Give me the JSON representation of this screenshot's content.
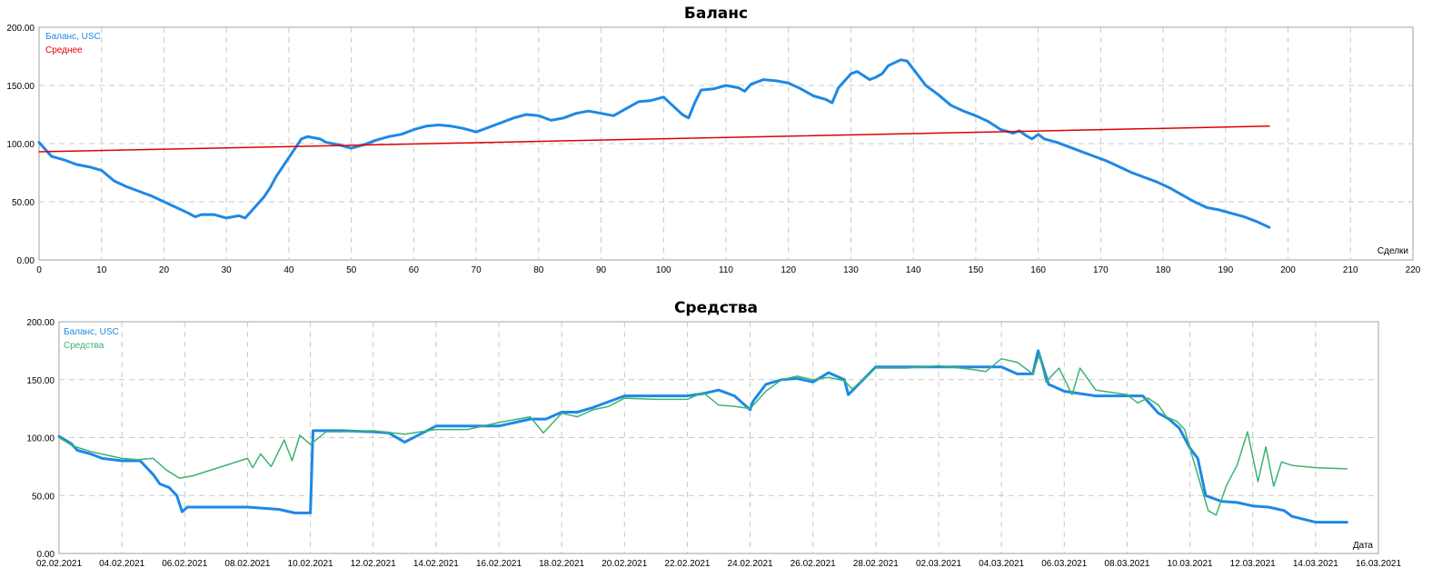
{
  "chart_data": [
    {
      "type": "line",
      "title": "Баланс",
      "xlabel": "Сделки",
      "ylabel": "",
      "xlim": [
        0,
        220
      ],
      "ylim": [
        0,
        200
      ],
      "x_ticks": [
        "0",
        "10",
        "20",
        "30",
        "40",
        "50",
        "60",
        "70",
        "80",
        "90",
        "100",
        "110",
        "120",
        "130",
        "140",
        "150",
        "160",
        "170",
        "180",
        "190",
        "200",
        "210",
        "220"
      ],
      "y_ticks": [
        "0.00",
        "50.00",
        "100.00",
        "150.00",
        "200.00"
      ],
      "grid": true,
      "legend_position": "top-left",
      "series": [
        {
          "name": "Баланс, USC",
          "color": "#1E88E5",
          "x": [
            0,
            1,
            2,
            4,
            6,
            8,
            10,
            12,
            14,
            16,
            18,
            20,
            22,
            24,
            25,
            26,
            28,
            30,
            31,
            32,
            33,
            34,
            36,
            37,
            38,
            40,
            42,
            43,
            44,
            45,
            46,
            48,
            50,
            52,
            54,
            56,
            58,
            60,
            62,
            64,
            66,
            68,
            70,
            72,
            74,
            76,
            78,
            80,
            82,
            84,
            86,
            88,
            90,
            92,
            94,
            96,
            98,
            100,
            101,
            102,
            103,
            104,
            105,
            106,
            108,
            110,
            112,
            113,
            114,
            116,
            118,
            120,
            122,
            124,
            126,
            127,
            128,
            130,
            131,
            133,
            134,
            135,
            136,
            138,
            139,
            140,
            142,
            144,
            146,
            148,
            150,
            152,
            154,
            156,
            157,
            158,
            159,
            160,
            161,
            163,
            165,
            167,
            169,
            171,
            173,
            175,
            177,
            179,
            181,
            183,
            185,
            187,
            189,
            191,
            193,
            195,
            197
          ],
          "values": [
            101,
            95,
            89,
            86,
            82,
            80,
            77,
            68,
            63,
            59,
            55,
            50,
            45,
            40,
            37,
            39,
            39,
            36,
            37,
            38,
            36,
            42,
            54,
            62,
            72,
            88,
            104,
            106,
            105,
            104,
            101,
            99,
            96,
            99,
            103,
            106,
            108,
            112,
            115,
            116,
            115,
            113,
            110,
            114,
            118,
            122,
            125,
            124,
            120,
            122,
            126,
            128,
            126,
            124,
            130,
            136,
            137,
            140,
            135,
            130,
            125,
            122,
            135,
            146,
            147,
            150,
            148,
            145,
            151,
            155,
            154,
            152,
            147,
            141,
            138,
            135,
            148,
            160,
            162,
            155,
            157,
            160,
            167,
            172,
            171,
            164,
            150,
            142,
            133,
            128,
            124,
            119,
            112,
            109,
            111,
            107,
            104,
            108,
            104,
            101,
            97,
            93,
            89,
            85,
            80,
            75,
            71,
            67,
            62,
            56,
            50,
            45,
            43,
            40,
            37,
            33,
            28
          ]
        },
        {
          "name": "Среднее",
          "color": "#E00000",
          "x": [
            0,
            197
          ],
          "values": [
            93,
            115
          ]
        }
      ]
    },
    {
      "type": "line",
      "title": "Средства",
      "xlabel": "Дата",
      "ylabel": "",
      "xlim": [
        "02.02.2021",
        "16.03.2021"
      ],
      "ylim": [
        0,
        200
      ],
      "x_ticks": [
        "02.02.2021",
        "04.02.2021",
        "06.02.2021",
        "08.02.2021",
        "10.02.2021",
        "12.02.2021",
        "14.02.2021",
        "16.02.2021",
        "18.02.2021",
        "20.02.2021",
        "22.02.2021",
        "24.02.2021",
        "26.02.2021",
        "28.02.2021",
        "02.03.2021",
        "04.03.2021",
        "06.03.2021",
        "08.03.2021",
        "10.03.2021",
        "12.03.2021",
        "14.03.2021",
        "16.03.2021"
      ],
      "y_ticks": [
        "0.00",
        "50.00",
        "100.00",
        "150.00",
        "200.00"
      ],
      "grid": true,
      "legend_position": "top-left",
      "series": [
        {
          "name": "Баланс, USC",
          "color": "#1E88E5",
          "x": [
            "02.02.2021 00:00",
            "02.02.2021 09:00",
            "02.02.2021 14:00",
            "03.02.2021 00:00",
            "03.02.2021 09:00",
            "04.02.2021 00:00",
            "04.02.2021 14:00",
            "05.02.2021 00:00",
            "05.02.2021 05:00",
            "05.02.2021 12:00",
            "05.02.2021 18:00",
            "05.02.2021 22:00",
            "06.02.2021 02:00",
            "08.02.2021 00:00",
            "09.02.2021 00:00",
            "09.02.2021 12:00",
            "10.02.2021 00:00",
            "10.02.2021 02:00",
            "11.02.2021 00:00",
            "12.02.2021 00:00",
            "12.02.2021 12:00",
            "13.02.2021 00:00",
            "14.02.2021 00:00",
            "16.02.2021 00:00",
            "17.02.2021 00:00",
            "17.02.2021 12:00",
            "18.02.2021 00:00",
            "18.02.2021 12:00",
            "19.02.2021 00:00",
            "19.02.2021 12:00",
            "20.02.2021 00:00",
            "21.02.2021 00:00",
            "22.02.2021 00:00",
            "22.02.2021 12:00",
            "23.02.2021 00:00",
            "23.02.2021 12:00",
            "24.02.2021 00:00",
            "24.02.2021 02:00",
            "24.02.2021 12:00",
            "25.02.2021 00:00",
            "25.02.2021 12:00",
            "26.02.2021 00:00",
            "26.02.2021 12:00",
            "27.02.2021 00:00",
            "27.02.2021 03:00",
            "28.02.2021 00:00",
            "01.03.2021 00:00",
            "02.03.2021 00:00",
            "03.03.2021 00:00",
            "04.03.2021 00:00",
            "04.03.2021 12:00",
            "05.03.2021 00:00",
            "05.03.2021 04:00",
            "05.03.2021 12:00",
            "06.03.2021 00:00",
            "07.03.2021 00:00",
            "08.03.2021 00:00",
            "08.03.2021 12:00",
            "09.03.2021 00:00",
            "09.03.2021 08:00",
            "09.03.2021 16:00",
            "10.03.2021 00:00",
            "10.03.2021 06:00",
            "10.03.2021 12:00",
            "11.03.2021 00:00",
            "11.03.2021 12:00",
            "12.03.2021 00:00",
            "12.03.2021 12:00",
            "13.03.2021 00:00",
            "13.03.2021 06:00",
            "14.03.2021 00:00",
            "15.03.2021 00:00"
          ],
          "values": [
            101,
            95,
            89,
            86,
            82,
            80,
            80,
            68,
            60,
            57,
            50,
            36,
            40,
            40,
            38,
            35,
            35,
            106,
            106,
            105,
            104,
            96,
            110,
            110,
            116,
            116,
            122,
            122,
            126,
            131,
            136,
            136,
            136,
            138,
            141,
            136,
            124,
            131,
            146,
            150,
            151,
            148,
            156,
            150,
            137,
            161,
            161,
            161,
            161,
            161,
            155,
            155,
            175,
            146,
            140,
            136,
            136,
            136,
            121,
            116,
            108,
            91,
            82,
            50,
            45,
            44,
            41,
            40,
            37,
            32,
            27,
            27
          ]
        },
        {
          "name": "Средства",
          "color": "#3CB371",
          "x": [
            "02.02.2021 00:00",
            "02.02.2021 10:00",
            "03.02.2021 00:00",
            "03.02.2021 12:00",
            "04.02.2021 00:00",
            "04.02.2021 12:00",
            "05.02.2021 00:00",
            "05.02.2021 10:00",
            "05.02.2021 20:00",
            "06.02.2021 06:00",
            "08.02.2021 00:00",
            "08.02.2021 04:00",
            "08.02.2021 10:00",
            "08.02.2021 18:00",
            "09.02.2021 04:00",
            "09.02.2021 10:00",
            "09.02.2021 16:00",
            "10.02.2021 00:00",
            "10.02.2021 12:00",
            "11.02.2021 00:00",
            "12.02.2021 00:00",
            "13.02.2021 00:00",
            "14.02.2021 00:00",
            "15.02.2021 00:00",
            "16.02.2021 00:00",
            "17.02.2021 00:00",
            "17.02.2021 10:00",
            "18.02.2021 00:00",
            "18.02.2021 12:00",
            "19.02.2021 00:00",
            "19.02.2021 12:00",
            "20.02.2021 00:00",
            "21.02.2021 00:00",
            "22.02.2021 00:00",
            "22.02.2021 12:00",
            "23.02.2021 00:00",
            "23.02.2021 12:00",
            "24.02.2021 00:00",
            "24.02.2021 12:00",
            "25.02.2021 00:00",
            "25.02.2021 12:00",
            "26.02.2021 00:00",
            "26.02.2021 12:00",
            "27.02.2021 00:00",
            "27.02.2021 06:00",
            "28.02.2021 00:00",
            "01.03.2021 00:00",
            "02.03.2021 00:00",
            "03.03.2021 00:00",
            "03.03.2021 12:00",
            "04.03.2021 00:00",
            "04.03.2021 12:00",
            "05.03.2021 00:00",
            "05.03.2021 05:00",
            "05.03.2021 10:00",
            "05.03.2021 20:00",
            "06.03.2021 06:00",
            "06.03.2021 12:00",
            "07.03.2021 00:00",
            "08.03.2021 00:00",
            "08.03.2021 08:00",
            "08.03.2021 16:00",
            "09.03.2021 00:00",
            "09.03.2021 06:00",
            "09.03.2021 14:00",
            "09.03.2021 20:00",
            "10.03.2021 02:00",
            "10.03.2021 08:00",
            "10.03.2021 14:00",
            "10.03.2021 20:00",
            "11.03.2021 04:00",
            "11.03.2021 12:00",
            "11.03.2021 20:00",
            "12.03.2021 04:00",
            "12.03.2021 10:00",
            "12.03.2021 16:00",
            "12.03.2021 22:00",
            "13.03.2021 06:00",
            "14.03.2021 00:00",
            "15.03.2021 00:00"
          ],
          "values": [
            100,
            93,
            88,
            85,
            82,
            81,
            82,
            72,
            65,
            67,
            82,
            74,
            86,
            75,
            98,
            80,
            102,
            94,
            105,
            105,
            106,
            103,
            107,
            107,
            113,
            118,
            104,
            121,
            118,
            124,
            127,
            134,
            133,
            133,
            139,
            128,
            127,
            125,
            140,
            150,
            153,
            150,
            152,
            149,
            142,
            160,
            160,
            162,
            159,
            157,
            168,
            165,
            155,
            172,
            148,
            160,
            137,
            160,
            141,
            137,
            130,
            134,
            128,
            118,
            114,
            107,
            83,
            60,
            37,
            33,
            59,
            76,
            105,
            62,
            92,
            58,
            79,
            76,
            74,
            73
          ]
        }
      ]
    }
  ]
}
